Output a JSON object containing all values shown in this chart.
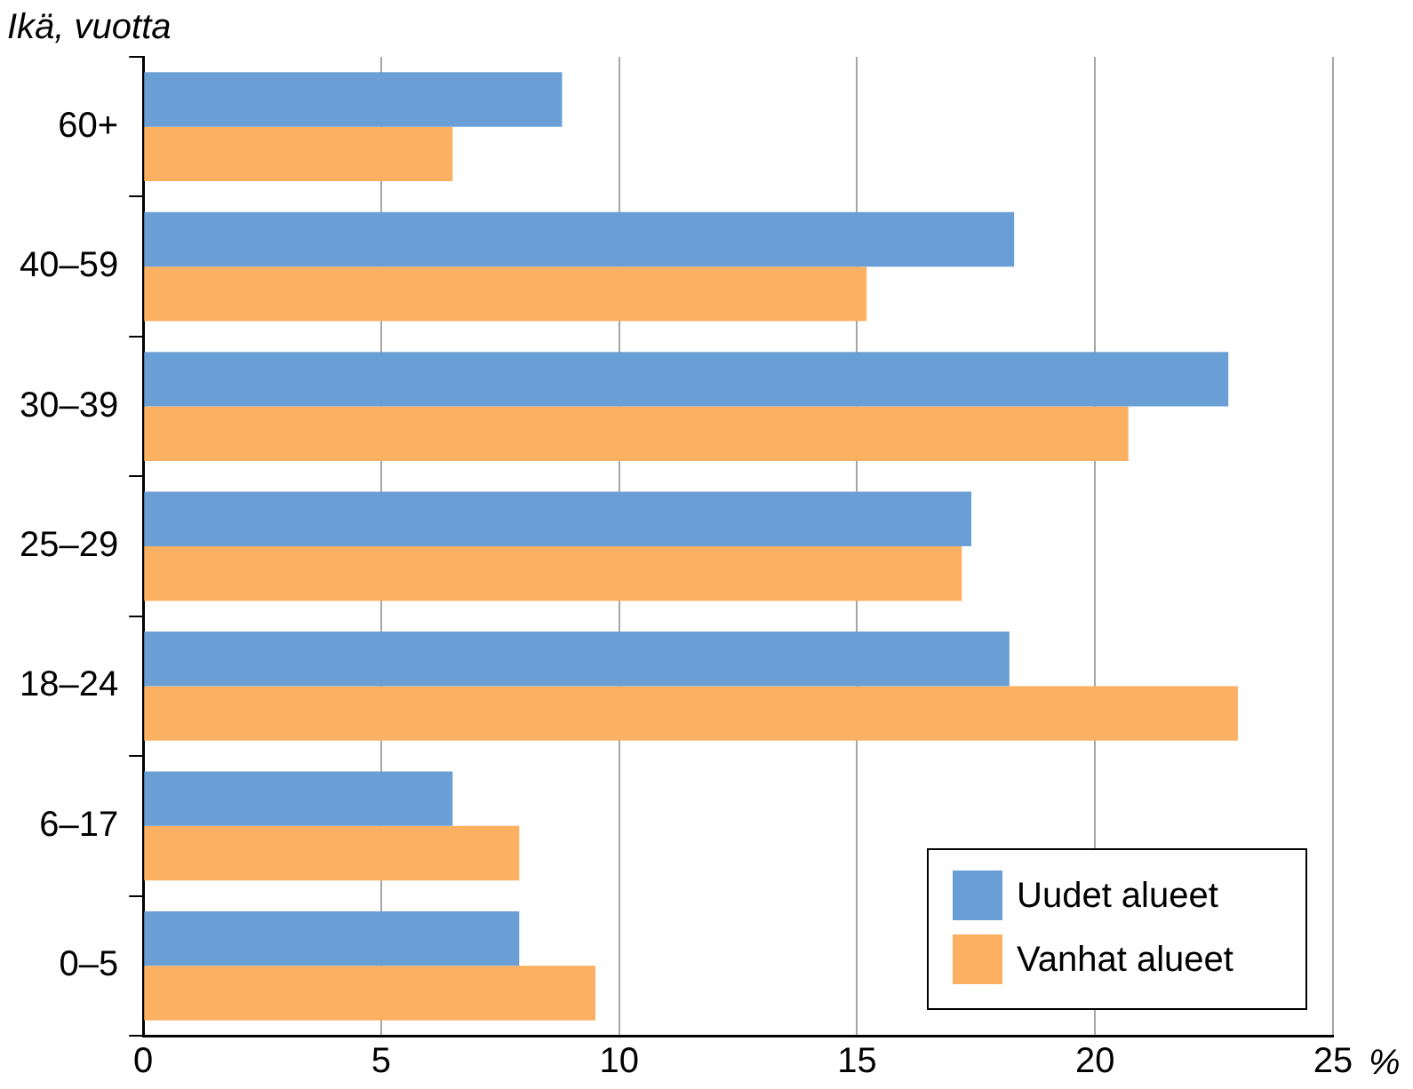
{
  "chart_data": {
    "type": "bar",
    "orientation": "horizontal",
    "ylabel": "Ikä, vuotta",
    "xlabel": "%",
    "categories": [
      "60+",
      "40–59",
      "30–39",
      "25–29",
      "18–24",
      "6–17",
      "0–5"
    ],
    "series": [
      {
        "name": "Uudet alueet",
        "color": "#6a9fd6",
        "values": [
          8.8,
          18.3,
          22.8,
          17.4,
          18.2,
          6.5,
          7.9
        ]
      },
      {
        "name": "Vanhat alueet",
        "color": "#fbb062",
        "values": [
          6.5,
          15.2,
          20.7,
          17.2,
          23.0,
          7.9,
          9.5
        ]
      }
    ],
    "xlim": [
      0,
      25
    ],
    "xticks": [
      0,
      5,
      10,
      15,
      20,
      25
    ],
    "grid": "x",
    "legend": "bottom right"
  }
}
